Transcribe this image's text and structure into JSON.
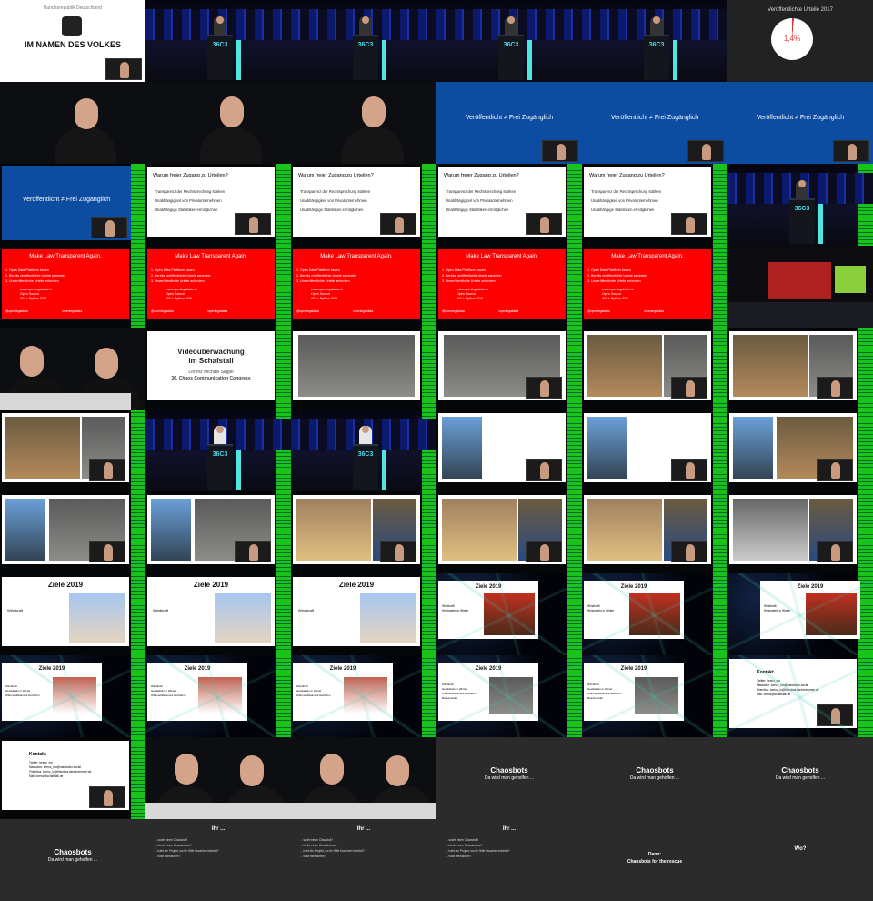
{
  "slides": {
    "bundes_header": "Bundesrepublik Deutschland",
    "bundes_title": "IM NAMEN DES VOLKES",
    "pie_title": "Veröffentlichte Urteile 2017",
    "pie_value": "1,4%",
    "blue_text": "Veröffentlicht ≠ Frei Zugänglich",
    "question_title": "Warum freier Zugang zu Urteilen?",
    "question_items": [
      "Transparenz der Rechtsprechung stärken",
      "Unabhängigkeit von Privatunternehmen",
      "Unabhängige Statistiken ermöglichen"
    ],
    "law_title": "Make Law Transparent Again.",
    "law_items": [
      "1. Open Data Plattform bauen",
      "2. Bereits veröffentlichte Urteile sammeln",
      "3. Unveröffentlichte Urteile anfordern"
    ],
    "law_link": "www.openlegaldata.io",
    "law_source1": "Open Source",
    "law_source2": "API + Python SDK",
    "law_twitter": "@openlegaldata",
    "law_github": "/openlegaldata",
    "video_title1": "Videoüberwachung",
    "video_title2": "im Schafstall",
    "video_author": "Lorenz Michael Siggel",
    "video_event": "36. Chaos Communication Congress",
    "goals_title": "Ziele 2019",
    "goals_items": [
      "Windkraft",
      "Heizkabeln in Winter",
      "Wärmebildkamera Heizlehm",
      "Brandmelder"
    ],
    "contact_title": "Kontakt",
    "contact_lines": [
      "Twitter: lorenz_mo",
      "Mastodon: lorenz_mo@mastodon.social",
      "Friendica: lorenz_lo@friendica.denkerzimmer.de",
      "Mail: lorenz@schafstall.de"
    ],
    "chaos_title": "Chaosbots",
    "chaos_sub": "Da wird man geholfen ...",
    "dark_title": "Ihr ...",
    "dark_items": [
      "... sucht einen Chaosbot?",
      "... bietet einen Chaosbot an?",
      "... habt ein Projekt, wo ihr Hilfe brauchen könntet?",
      "... wollt mitmachen?"
    ],
    "dann_title": "Dann:",
    "dann_sub": "Chaosbots for the rescue",
    "wo_title": "Wo?"
  },
  "stage_logo": "36C3"
}
